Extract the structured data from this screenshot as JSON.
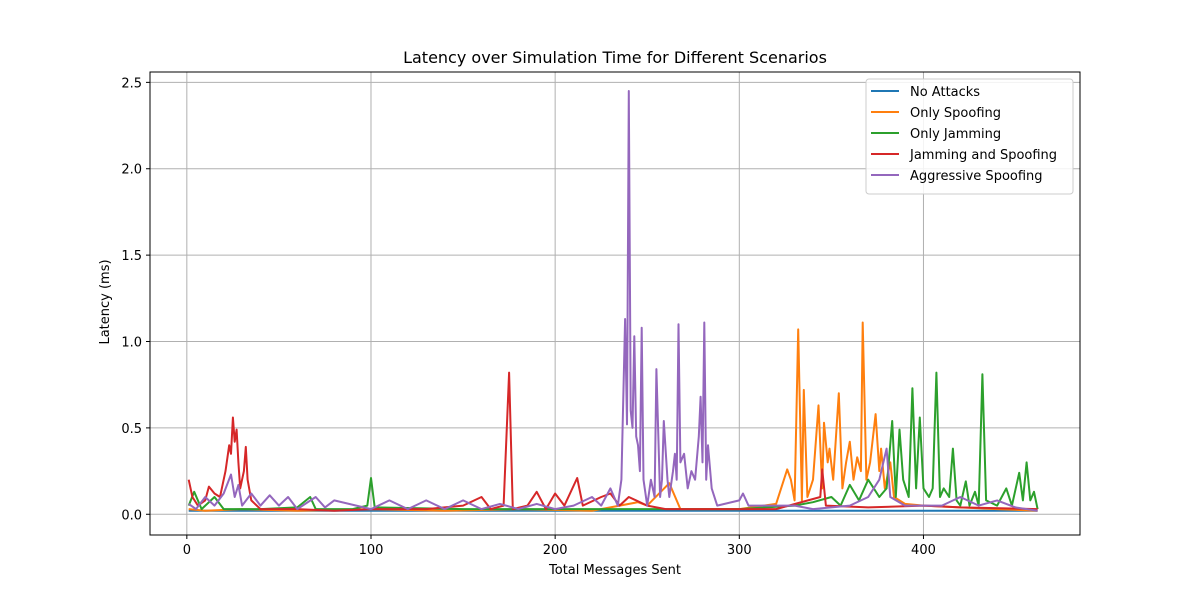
{
  "chart_data": {
    "type": "line",
    "title": "Latency over Simulation Time for Different Scenarios",
    "xlabel": "Total Messages Sent",
    "ylabel": "Latency (ms)",
    "xlim": [
      -20,
      485
    ],
    "ylim": [
      -0.12,
      2.56
    ],
    "xticks": [
      0,
      100,
      200,
      300,
      400
    ],
    "yticks": [
      0.0,
      0.5,
      1.0,
      1.5,
      2.0,
      2.5
    ],
    "xtick_labels": [
      "0",
      "100",
      "200",
      "300",
      "400"
    ],
    "ytick_labels": [
      "0.0",
      "0.5",
      "1.0",
      "1.5",
      "2.0",
      "2.5"
    ],
    "grid": true,
    "legend_position": "top-right",
    "series": [
      {
        "name": "No Attacks",
        "color": "#1f77b4",
        "points": [
          [
            1,
            0.02
          ],
          [
            20,
            0.02
          ],
          [
            50,
            0.02
          ],
          [
            100,
            0.02
          ],
          [
            150,
            0.02
          ],
          [
            200,
            0.02
          ],
          [
            250,
            0.02
          ],
          [
            300,
            0.02
          ],
          [
            350,
            0.02
          ],
          [
            400,
            0.02
          ],
          [
            462,
            0.02
          ]
        ]
      },
      {
        "name": "Only Spoofing",
        "color": "#ff7f0e",
        "points": [
          [
            1,
            0.03
          ],
          [
            10,
            0.02
          ],
          [
            30,
            0.03
          ],
          [
            60,
            0.02
          ],
          [
            100,
            0.03
          ],
          [
            140,
            0.02
          ],
          [
            180,
            0.03
          ],
          [
            220,
            0.02
          ],
          [
            245,
            0.07
          ],
          [
            250,
            0.05
          ],
          [
            262,
            0.18
          ],
          [
            268,
            0.03
          ],
          [
            300,
            0.03
          ],
          [
            320,
            0.06
          ],
          [
            326,
            0.26
          ],
          [
            328,
            0.2
          ],
          [
            330,
            0.08
          ],
          [
            332,
            1.07
          ],
          [
            334,
            0.08
          ],
          [
            335,
            0.72
          ],
          [
            337,
            0.1
          ],
          [
            340,
            0.2
          ],
          [
            343,
            0.63
          ],
          [
            345,
            0.15
          ],
          [
            346,
            0.53
          ],
          [
            348,
            0.3
          ],
          [
            349,
            0.38
          ],
          [
            351,
            0.2
          ],
          [
            354,
            0.7
          ],
          [
            356,
            0.15
          ],
          [
            358,
            0.3
          ],
          [
            360,
            0.42
          ],
          [
            362,
            0.2
          ],
          [
            364,
            0.33
          ],
          [
            366,
            0.25
          ],
          [
            367,
            1.11
          ],
          [
            369,
            0.2
          ],
          [
            371,
            0.3
          ],
          [
            374,
            0.58
          ],
          [
            376,
            0.25
          ],
          [
            377,
            0.38
          ],
          [
            379,
            0.15
          ],
          [
            382,
            0.3
          ],
          [
            384,
            0.1
          ],
          [
            390,
            0.06
          ],
          [
            400,
            0.05
          ],
          [
            420,
            0.04
          ],
          [
            440,
            0.03
          ],
          [
            462,
            0.02
          ]
        ]
      },
      {
        "name": "Only Jamming",
        "color": "#2ca02c",
        "points": [
          [
            1,
            0.05
          ],
          [
            4,
            0.13
          ],
          [
            8,
            0.03
          ],
          [
            15,
            0.1
          ],
          [
            20,
            0.03
          ],
          [
            40,
            0.03
          ],
          [
            60,
            0.04
          ],
          [
            67,
            0.1
          ],
          [
            70,
            0.03
          ],
          [
            90,
            0.03
          ],
          [
            98,
            0.05
          ],
          [
            100,
            0.21
          ],
          [
            102,
            0.04
          ],
          [
            150,
            0.03
          ],
          [
            200,
            0.03
          ],
          [
            250,
            0.03
          ],
          [
            300,
            0.03
          ],
          [
            330,
            0.05
          ],
          [
            340,
            0.07
          ],
          [
            350,
            0.1
          ],
          [
            355,
            0.05
          ],
          [
            360,
            0.17
          ],
          [
            365,
            0.08
          ],
          [
            370,
            0.2
          ],
          [
            376,
            0.1
          ],
          [
            380,
            0.15
          ],
          [
            383,
            0.54
          ],
          [
            385,
            0.1
          ],
          [
            387,
            0.49
          ],
          [
            389,
            0.2
          ],
          [
            392,
            0.1
          ],
          [
            394,
            0.73
          ],
          [
            396,
            0.15
          ],
          [
            398,
            0.56
          ],
          [
            400,
            0.15
          ],
          [
            403,
            0.1
          ],
          [
            405,
            0.15
          ],
          [
            407,
            0.82
          ],
          [
            409,
            0.1
          ],
          [
            411,
            0.15
          ],
          [
            414,
            0.1
          ],
          [
            416,
            0.38
          ],
          [
            418,
            0.08
          ],
          [
            420,
            0.05
          ],
          [
            423,
            0.19
          ],
          [
            425,
            0.05
          ],
          [
            428,
            0.13
          ],
          [
            430,
            0.05
          ],
          [
            432,
            0.81
          ],
          [
            434,
            0.08
          ],
          [
            440,
            0.05
          ],
          [
            445,
            0.15
          ],
          [
            448,
            0.05
          ],
          [
            452,
            0.24
          ],
          [
            454,
            0.08
          ],
          [
            456,
            0.3
          ],
          [
            458,
            0.08
          ],
          [
            460,
            0.13
          ],
          [
            462,
            0.03
          ]
        ]
      },
      {
        "name": "Jamming and Spoofing",
        "color": "#d62728",
        "points": [
          [
            1,
            0.2
          ],
          [
            3,
            0.1
          ],
          [
            6,
            0.05
          ],
          [
            10,
            0.08
          ],
          [
            12,
            0.16
          ],
          [
            15,
            0.12
          ],
          [
            18,
            0.1
          ],
          [
            21,
            0.25
          ],
          [
            23,
            0.4
          ],
          [
            24,
            0.35
          ],
          [
            25,
            0.56
          ],
          [
            26,
            0.42
          ],
          [
            27,
            0.49
          ],
          [
            28,
            0.3
          ],
          [
            29,
            0.15
          ],
          [
            31,
            0.25
          ],
          [
            32,
            0.39
          ],
          [
            33,
            0.2
          ],
          [
            35,
            0.08
          ],
          [
            40,
            0.03
          ],
          [
            60,
            0.03
          ],
          [
            80,
            0.02
          ],
          [
            100,
            0.03
          ],
          [
            130,
            0.03
          ],
          [
            150,
            0.05
          ],
          [
            160,
            0.1
          ],
          [
            165,
            0.03
          ],
          [
            172,
            0.05
          ],
          [
            175,
            0.82
          ],
          [
            177,
            0.03
          ],
          [
            185,
            0.05
          ],
          [
            190,
            0.13
          ],
          [
            195,
            0.03
          ],
          [
            200,
            0.12
          ],
          [
            205,
            0.05
          ],
          [
            212,
            0.21
          ],
          [
            215,
            0.05
          ],
          [
            225,
            0.1
          ],
          [
            230,
            0.12
          ],
          [
            235,
            0.05
          ],
          [
            240,
            0.1
          ],
          [
            250,
            0.05
          ],
          [
            260,
            0.03
          ],
          [
            290,
            0.03
          ],
          [
            320,
            0.03
          ],
          [
            344,
            0.1
          ],
          [
            345,
            0.26
          ],
          [
            347,
            0.05
          ],
          [
            370,
            0.04
          ],
          [
            400,
            0.05
          ],
          [
            420,
            0.04
          ],
          [
            462,
            0.03
          ]
        ]
      },
      {
        "name": "Aggressive Spoofing",
        "color": "#9467bd",
        "points": [
          [
            1,
            0.06
          ],
          [
            5,
            0.03
          ],
          [
            10,
            0.1
          ],
          [
            15,
            0.05
          ],
          [
            20,
            0.12
          ],
          [
            24,
            0.23
          ],
          [
            26,
            0.1
          ],
          [
            28,
            0.17
          ],
          [
            30,
            0.05
          ],
          [
            35,
            0.12
          ],
          [
            40,
            0.05
          ],
          [
            45,
            0.11
          ],
          [
            50,
            0.05
          ],
          [
            55,
            0.1
          ],
          [
            60,
            0.03
          ],
          [
            70,
            0.1
          ],
          [
            75,
            0.04
          ],
          [
            80,
            0.08
          ],
          [
            100,
            0.03
          ],
          [
            110,
            0.08
          ],
          [
            120,
            0.03
          ],
          [
            130,
            0.08
          ],
          [
            140,
            0.03
          ],
          [
            150,
            0.08
          ],
          [
            160,
            0.03
          ],
          [
            170,
            0.06
          ],
          [
            180,
            0.03
          ],
          [
            190,
            0.06
          ],
          [
            200,
            0.03
          ],
          [
            210,
            0.05
          ],
          [
            220,
            0.1
          ],
          [
            225,
            0.05
          ],
          [
            230,
            0.15
          ],
          [
            234,
            0.05
          ],
          [
            236,
            0.2
          ],
          [
            238,
            1.13
          ],
          [
            239,
            0.52
          ],
          [
            240,
            2.45
          ],
          [
            241,
            0.6
          ],
          [
            242,
            0.5
          ],
          [
            243,
            1.03
          ],
          [
            244,
            0.45
          ],
          [
            245,
            0.4
          ],
          [
            246,
            0.25
          ],
          [
            247,
            1.08
          ],
          [
            248,
            0.2
          ],
          [
            250,
            0.05
          ],
          [
            252,
            0.2
          ],
          [
            254,
            0.1
          ],
          [
            255,
            0.84
          ],
          [
            257,
            0.1
          ],
          [
            258,
            0.2
          ],
          [
            259,
            0.54
          ],
          [
            261,
            0.2
          ],
          [
            262,
            0.1
          ],
          [
            264,
            0.25
          ],
          [
            265,
            0.35
          ],
          [
            266,
            0.2
          ],
          [
            267,
            1.1
          ],
          [
            268,
            0.3
          ],
          [
            270,
            0.35
          ],
          [
            272,
            0.15
          ],
          [
            274,
            0.25
          ],
          [
            276,
            0.2
          ],
          [
            278,
            0.45
          ],
          [
            279,
            0.68
          ],
          [
            280,
            0.3
          ],
          [
            281,
            1.11
          ],
          [
            282,
            0.2
          ],
          [
            283,
            0.4
          ],
          [
            285,
            0.15
          ],
          [
            288,
            0.05
          ],
          [
            300,
            0.08
          ],
          [
            302,
            0.12
          ],
          [
            305,
            0.05
          ],
          [
            320,
            0.05
          ],
          [
            330,
            0.05
          ],
          [
            340,
            0.03
          ],
          [
            360,
            0.05
          ],
          [
            370,
            0.1
          ],
          [
            376,
            0.2
          ],
          [
            380,
            0.38
          ],
          [
            382,
            0.1
          ],
          [
            390,
            0.05
          ],
          [
            410,
            0.05
          ],
          [
            420,
            0.1
          ],
          [
            430,
            0.05
          ],
          [
            440,
            0.08
          ],
          [
            450,
            0.04
          ],
          [
            462,
            0.02
          ]
        ]
      }
    ]
  }
}
